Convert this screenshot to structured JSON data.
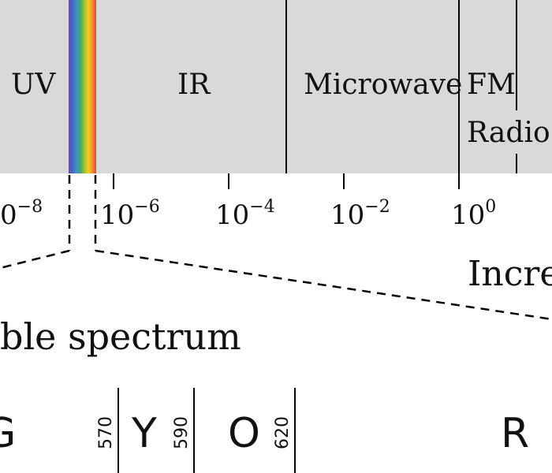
{
  "colors": {
    "band_background": "#d9d9d9",
    "line": "#000000",
    "text": "#111111",
    "spectrum_strip": [
      "#6a4fa0",
      "#4b62c4",
      "#3f8fd8",
      "#3fa86a",
      "#95c33c",
      "#f0d21f",
      "#f19425",
      "#e7412a"
    ]
  },
  "bands": {
    "uv": "UV",
    "ir": "IR",
    "microwave": "Microwave",
    "fm": "FM",
    "radio": "Radio v"
  },
  "axis": {
    "ticks": [
      {
        "base": "0",
        "exp": "−8"
      },
      {
        "base": "10",
        "exp": "−6"
      },
      {
        "base": "10",
        "exp": "−4"
      },
      {
        "base": "10",
        "exp": "−2"
      },
      {
        "base": "10",
        "exp": "0"
      }
    ]
  },
  "increasing_label": "Incre",
  "visible_label": "ble spectrum",
  "colour_bands": [
    {
      "letter": "G"
    },
    {
      "letter": "Y",
      "boundary": "570"
    },
    {
      "letter": "O",
      "boundary": "590"
    },
    {
      "letter": "R",
      "boundary": "620"
    }
  ]
}
